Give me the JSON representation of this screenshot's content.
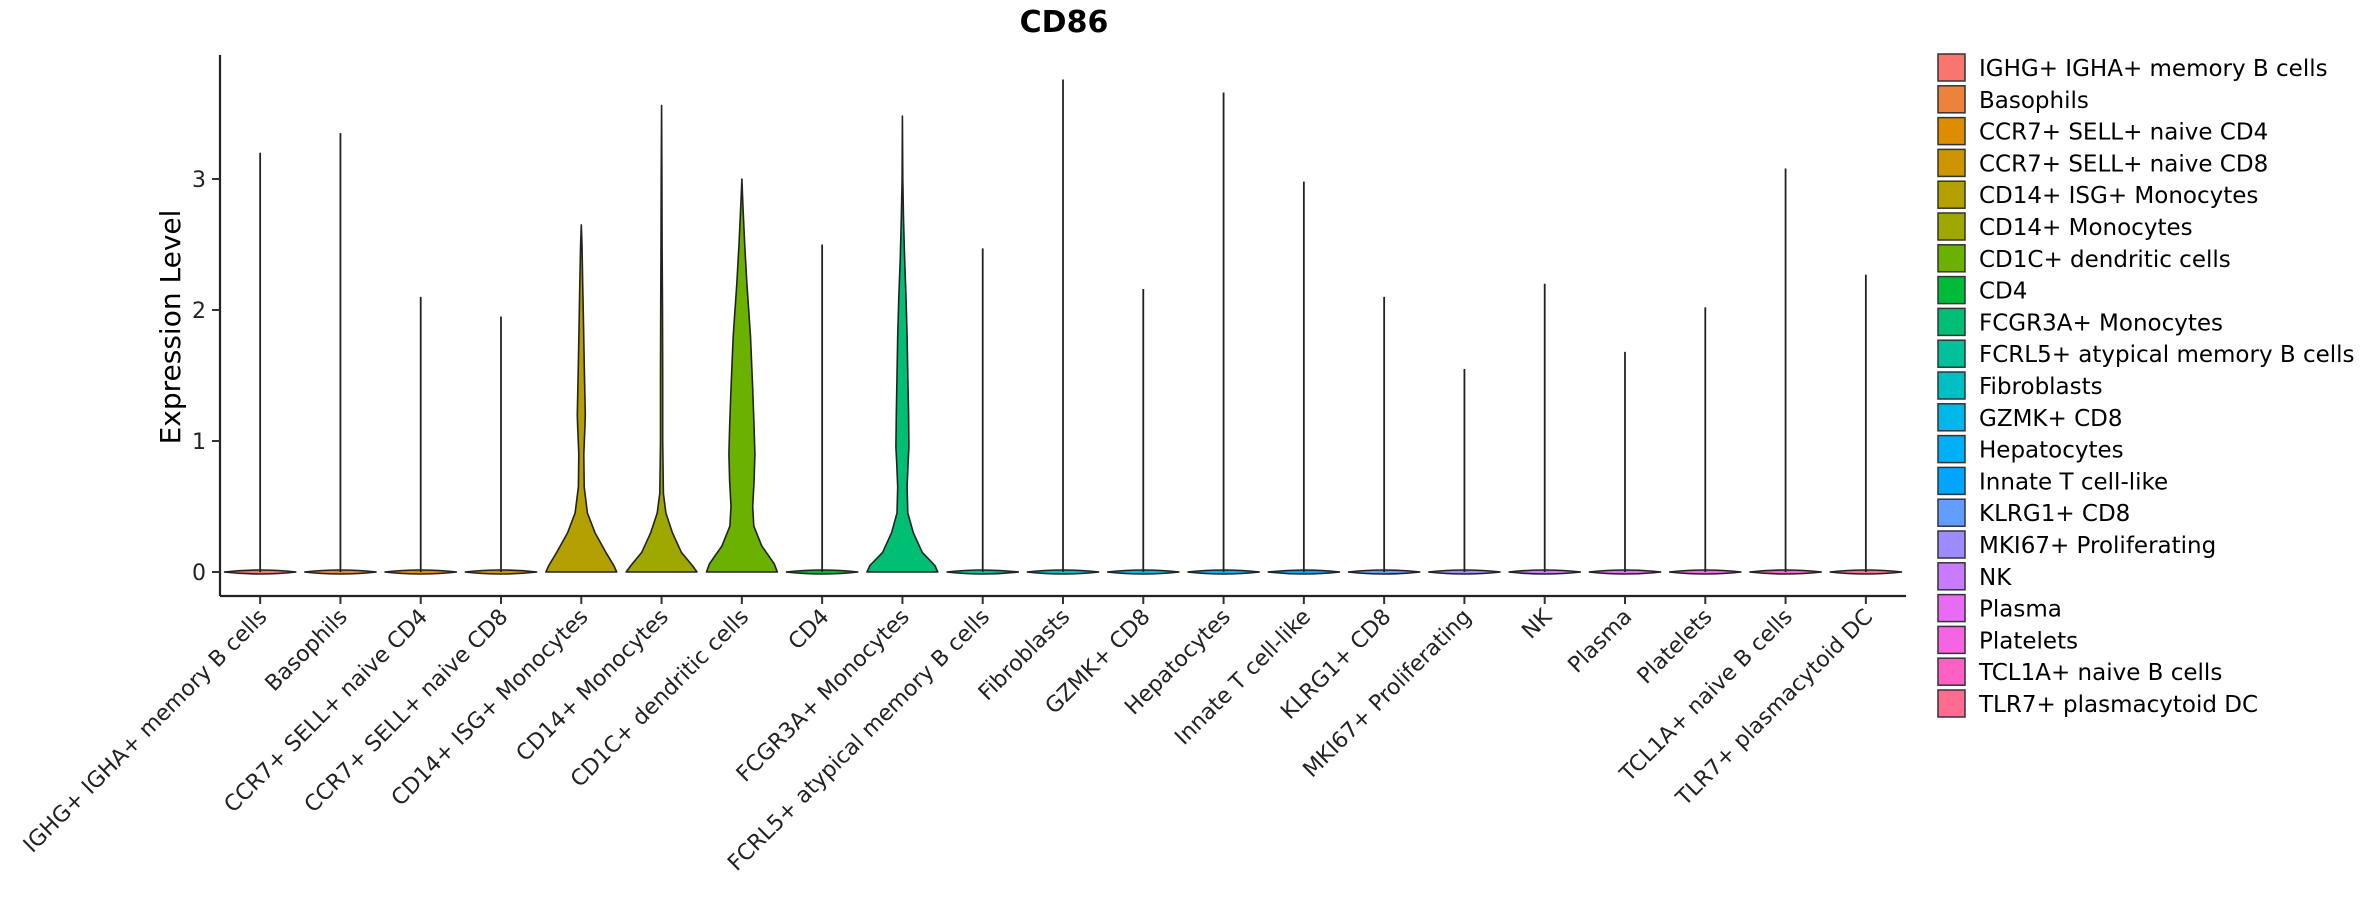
{
  "chart_data": {
    "type": "violin",
    "title": "CD86",
    "xlabel": "",
    "ylabel": "Expression Level",
    "ylim": [
      -0.18,
      3.95
    ],
    "yticks": [
      0,
      1,
      2,
      3
    ],
    "grid": false,
    "legend_position": "right",
    "categories": [
      "IGHG+ IGHA+ memory B cells",
      "Basophils",
      "CCR7+ SELL+ naive CD4",
      "CCR7+ SELL+ naive CD8",
      "CD14+ ISG+ Monocytes",
      "CD14+ Monocytes",
      "CD1C+ dendritic cells",
      "CD4",
      "FCGR3A+ Monocytes",
      "FCRL5+ atypical memory B cells",
      "Fibroblasts",
      "GZMK+ CD8",
      "Hepatocytes",
      "Innate T cell-like",
      "KLRG1+ CD8",
      "MKI67+ Proliferating",
      "NK",
      "Plasma",
      "Platelets",
      "TCL1A+ naive B cells",
      "TLR7+ plasmacytoid DC"
    ],
    "legend_labels": [
      " IGHG+ IGHA+ memory B cells",
      "Basophils",
      "CCR7+ SELL+ naive CD4",
      "CCR7+ SELL+ naive CD8",
      "CD14+ ISG+ Monocytes",
      "CD14+ Monocytes",
      "CD1C+ dendritic cells",
      "CD4",
      "FCGR3A+ Monocytes",
      "FCRL5+ atypical memory B cells",
      "Fibroblasts",
      "GZMK+ CD8",
      "Hepatocytes",
      "Innate T cell-like",
      "KLRG1+ CD8",
      "MKI67+ Proliferating",
      "NK",
      "Plasma",
      "Platelets",
      "TCL1A+ naive B cells",
      "TLR7+ plasmacytoid DC"
    ],
    "colors": [
      "#F8766D",
      "#EC823C",
      "#DE8C00",
      "#CD9600",
      "#B4A000",
      "#9FA800",
      "#6BB100",
      "#00BA38",
      "#00BF74",
      "#00C19A",
      "#00BFC4",
      "#00B8E7",
      "#00B0F6",
      "#00A5FF",
      "#619CFF",
      "#9E8CFF",
      "#C77CFF",
      "#E76BF3",
      "#F564E3",
      "#FF61C3",
      "#FF6C90"
    ],
    "max_values": [
      3.2,
      3.35,
      2.1,
      1.95,
      2.65,
      3.56,
      3.0,
      2.5,
      3.48,
      2.47,
      3.76,
      2.16,
      3.66,
      2.98,
      2.1,
      1.55,
      2.2,
      1.68,
      2.02,
      3.08,
      2.27
    ],
    "profiles": [
      null,
      null,
      null,
      null,
      [
        [
          0,
          0.98
        ],
        [
          0.05,
          0.9
        ],
        [
          0.15,
          0.68
        ],
        [
          0.3,
          0.38
        ],
        [
          0.45,
          0.17
        ],
        [
          0.65,
          0.08
        ],
        [
          0.9,
          0.07
        ],
        [
          1.1,
          0.1
        ],
        [
          1.2,
          0.11
        ],
        [
          1.35,
          0.1
        ],
        [
          1.6,
          0.08
        ],
        [
          1.9,
          0.06
        ],
        [
          2.2,
          0.04
        ],
        [
          2.5,
          0.02
        ],
        [
          2.65,
          0
        ]
      ],
      [
        [
          0,
          0.98
        ],
        [
          0.05,
          0.85
        ],
        [
          0.15,
          0.55
        ],
        [
          0.3,
          0.3
        ],
        [
          0.45,
          0.12
        ],
        [
          0.6,
          0.05
        ],
        [
          1.0,
          0.03
        ],
        [
          1.5,
          0.03
        ],
        [
          2.0,
          0.025
        ],
        [
          2.5,
          0.015
        ],
        [
          3.0,
          0.01
        ],
        [
          3.56,
          0
        ]
      ],
      [
        [
          0,
          0.98
        ],
        [
          0.06,
          0.9
        ],
        [
          0.2,
          0.55
        ],
        [
          0.35,
          0.33
        ],
        [
          0.5,
          0.3
        ],
        [
          0.7,
          0.34
        ],
        [
          0.9,
          0.36
        ],
        [
          1.1,
          0.34
        ],
        [
          1.4,
          0.3
        ],
        [
          1.8,
          0.24
        ],
        [
          2.2,
          0.14
        ],
        [
          2.5,
          0.08
        ],
        [
          2.8,
          0.03
        ],
        [
          3.0,
          0
        ]
      ],
      null,
      [
        [
          0,
          0.98
        ],
        [
          0.05,
          0.9
        ],
        [
          0.15,
          0.55
        ],
        [
          0.3,
          0.3
        ],
        [
          0.45,
          0.15
        ],
        [
          0.65,
          0.13
        ],
        [
          0.85,
          0.16
        ],
        [
          0.95,
          0.18
        ],
        [
          1.2,
          0.17
        ],
        [
          1.5,
          0.15
        ],
        [
          1.8,
          0.13
        ],
        [
          2.1,
          0.1
        ],
        [
          2.4,
          0.06
        ],
        [
          2.7,
          0.03
        ],
        [
          3.0,
          0.01
        ],
        [
          3.48,
          0
        ]
      ],
      null,
      null,
      null,
      null,
      null,
      null,
      null,
      null,
      null,
      null,
      null,
      null
    ]
  }
}
